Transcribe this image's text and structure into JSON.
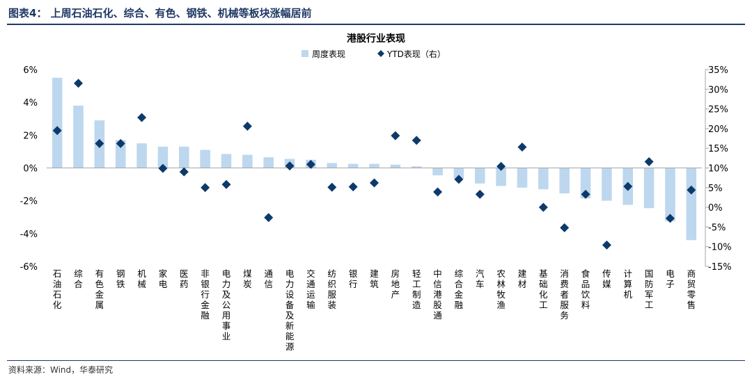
{
  "figure": {
    "title": "图表4：  上周石油石化、综合、有色、钢铁、机械等板块涨幅居前",
    "source": "资料来源：Wind，华泰研究"
  },
  "colors": {
    "bar": "#bdd7ee",
    "marker": "#0d3a6b",
    "rule": "#1f3864",
    "axis": "#a6a6a6"
  },
  "chart_data": {
    "type": "bar",
    "title": "港股行业表现",
    "legend": [
      "周度表现",
      "YTD表现（右）"
    ],
    "legend_position": "top-center",
    "categories": [
      "石油石化",
      "综合",
      "有色金属",
      "钢铁",
      "机械",
      "家电",
      "医药",
      "非银行金融",
      "电力及公用事业",
      "煤炭",
      "通信",
      "电力设备及新能源",
      "交通运输",
      "纺织服装",
      "银行",
      "建筑",
      "房地产",
      "轻工制造",
      "中信港股通",
      "综合金融",
      "汽车",
      "农林牧渔",
      "建材",
      "基础化工",
      "消费者服务",
      "食品饮料",
      "传媒",
      "计算机",
      "国防军工",
      "电子",
      "商贸零售"
    ],
    "series": [
      {
        "name": "周度表现",
        "type": "bar",
        "axis": "left",
        "values": [
          5.5,
          3.8,
          2.9,
          1.7,
          1.5,
          1.3,
          1.3,
          1.1,
          0.85,
          0.8,
          0.65,
          0.55,
          0.5,
          0.3,
          0.25,
          0.25,
          0.2,
          0.1,
          -0.45,
          -0.65,
          -0.95,
          -1.1,
          -1.2,
          -1.3,
          -1.55,
          -1.85,
          -2.0,
          -2.25,
          -2.45,
          -3.25,
          -4.4
        ]
      },
      {
        "name": "YTD表现（右）",
        "type": "scatter",
        "marker": "diamond",
        "axis": "right",
        "values": [
          19.5,
          31.5,
          16.2,
          16.2,
          22.8,
          9.9,
          9.0,
          5.0,
          5.8,
          20.6,
          -2.6,
          10.5,
          10.9,
          5.1,
          5.2,
          6.2,
          18.2,
          17.0,
          3.9,
          7.1,
          3.3,
          10.4,
          15.3,
          0.0,
          -5.2,
          3.3,
          -9.6,
          5.3,
          11.6,
          -2.8,
          4.4
        ]
      }
    ],
    "yleft": {
      "ylim": [
        -6,
        6
      ],
      "ticks": [
        "6%",
        "4%",
        "2%",
        "0%",
        "-2%",
        "-4%",
        "-6%"
      ]
    },
    "yright": {
      "ylim": [
        -15,
        35
      ],
      "ticks": [
        "35%",
        "30%",
        "25%",
        "20%",
        "15%",
        "10%",
        "5%",
        "0%",
        "-5%",
        "-10%",
        "-15%"
      ]
    }
  }
}
